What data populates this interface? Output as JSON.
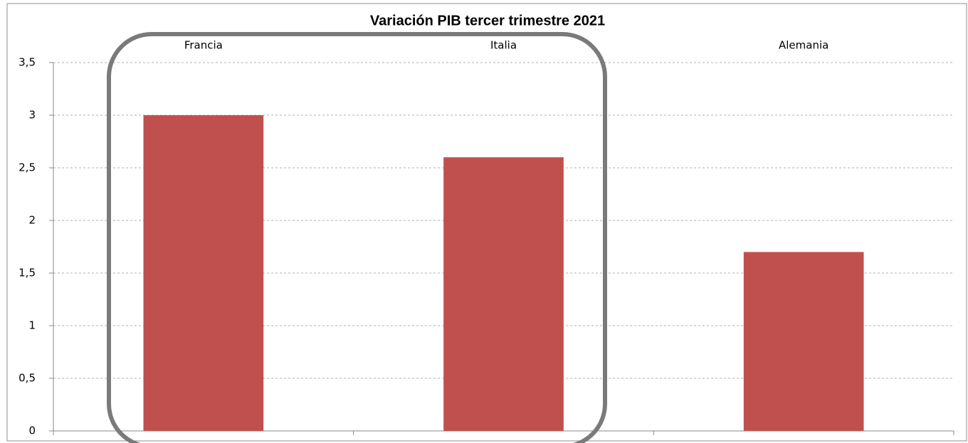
{
  "chart_data": {
    "type": "bar",
    "title": "Variación PIB tercer trimestre 2021",
    "categories": [
      "Francia",
      "Italia",
      "Alemania"
    ],
    "values": [
      3,
      2.6,
      1.7
    ],
    "color": "#c0504d",
    "ylim": [
      0,
      3.5
    ],
    "yticks": [
      0,
      {
        "value": 0.5,
        "label": "0,5"
      },
      1,
      {
        "value": 1.5,
        "label": "1,5"
      },
      2,
      {
        "value": 2.5,
        "label": "2,5"
      },
      3,
      {
        "value": 3.5,
        "label": "3,5"
      }
    ],
    "grid": true
  }
}
